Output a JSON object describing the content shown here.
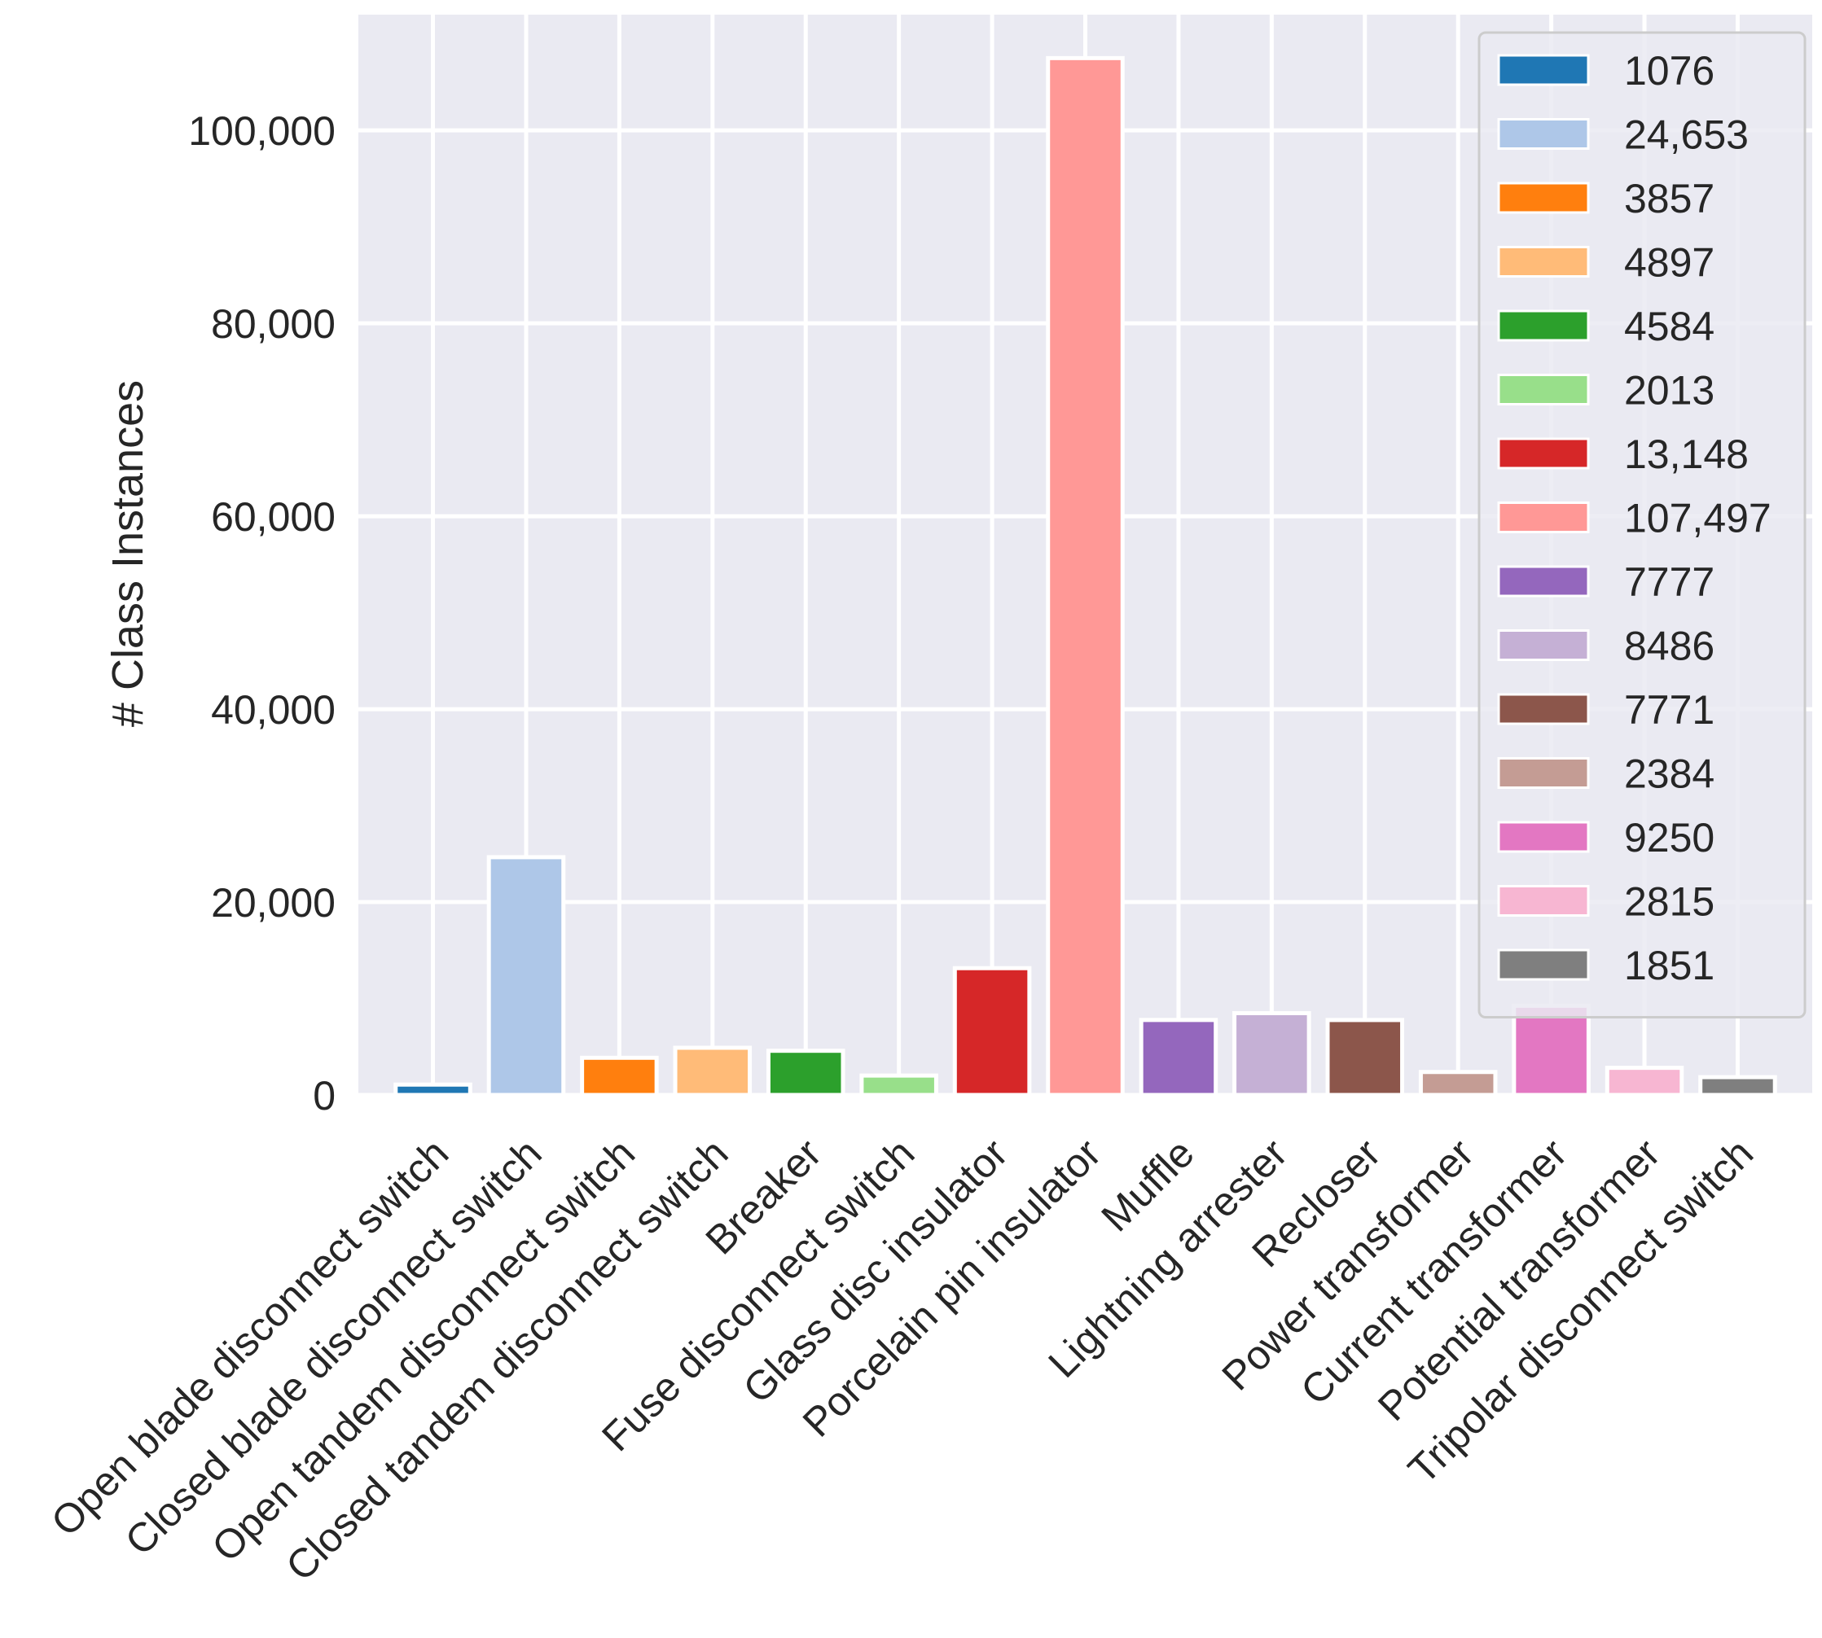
{
  "chart_data": {
    "type": "bar",
    "title": "",
    "xlabel": "",
    "ylabel": "# Class Instances",
    "ylim": [
      0,
      112000
    ],
    "yticks": [
      0,
      20000,
      40000,
      60000,
      80000,
      100000
    ],
    "ytick_labels": [
      "0",
      "20,000",
      "40,000",
      "60,000",
      "80,000",
      "100,000"
    ],
    "grid": true,
    "legend_position": "top-right",
    "categories": [
      "Open blade disconnect switch",
      "Closed blade disconnect switch",
      "Open tandem disconnect switch",
      "Closed tandem disconnect switch",
      "Breaker",
      "Fuse disconnect switch",
      "Glass disc insulator",
      "Porcelain pin insulator",
      "Muffle",
      "Lightning arrester",
      "Recloser",
      "Power transformer",
      "Current transformer",
      "Potential transformer",
      "Tripolar disconnect switch"
    ],
    "values": [
      1076,
      24653,
      3857,
      4897,
      4584,
      2013,
      13148,
      107497,
      7777,
      8486,
      7771,
      2384,
      9250,
      2815,
      1851
    ],
    "legend_labels": [
      "1076",
      "24,653",
      "3857",
      "4897",
      "4584",
      "2013",
      "13,148",
      "107,497",
      "7777",
      "8486",
      "7771",
      "2384",
      "9250",
      "2815",
      "1851"
    ],
    "colors": [
      "#1f77b4",
      "#aec7e8",
      "#ff7f0e",
      "#ffbb78",
      "#2ca02c",
      "#98df8a",
      "#d62728",
      "#ff9896",
      "#9467bd",
      "#c5b0d5",
      "#8c564b",
      "#c49c94",
      "#e377c2",
      "#f7b6d2",
      "#7f7f7f"
    ],
    "style": {
      "background": "#eaeaf2",
      "grid_color": "#ffffff",
      "text_color": "#262626"
    }
  }
}
